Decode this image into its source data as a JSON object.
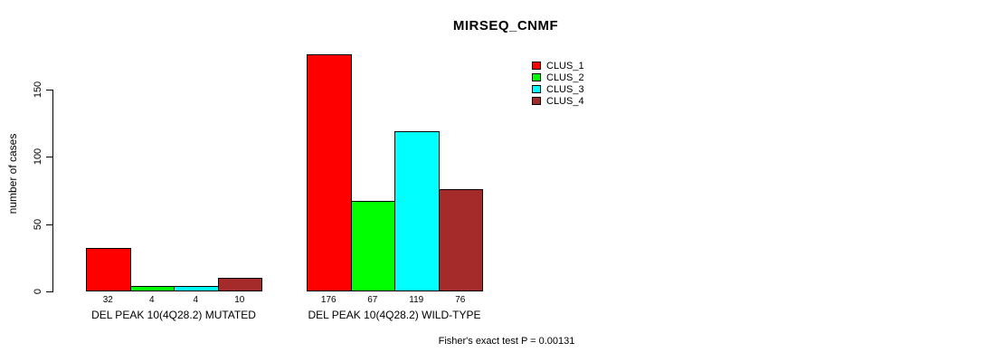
{
  "chart_data": {
    "type": "bar",
    "title": "MIRSEQ_CNMF",
    "ylabel": "number of cases",
    "ylim": [
      0,
      150
    ],
    "yticks": [
      0,
      50,
      100,
      150
    ],
    "grid": false,
    "legend_position": "top-right",
    "categories": [
      "DEL PEAK 10(4Q28.2) MUTATED",
      "DEL PEAK 10(4Q28.2) WILD-TYPE"
    ],
    "series": [
      {
        "name": "CLUS_1",
        "color": "#ff0000",
        "values": [
          32,
          176
        ]
      },
      {
        "name": "CLUS_2",
        "color": "#00ff00",
        "values": [
          4,
          67
        ]
      },
      {
        "name": "CLUS_3",
        "color": "#00ffff",
        "values": [
          4,
          119
        ]
      },
      {
        "name": "CLUS_4",
        "color": "#a52a2a",
        "values": [
          10,
          76
        ]
      }
    ],
    "bar_value_labels": [
      [
        32,
        4,
        4,
        10
      ],
      [
        176,
        67,
        119,
        76
      ]
    ],
    "annotation": "Fisher's exact test P = 0.00131"
  }
}
